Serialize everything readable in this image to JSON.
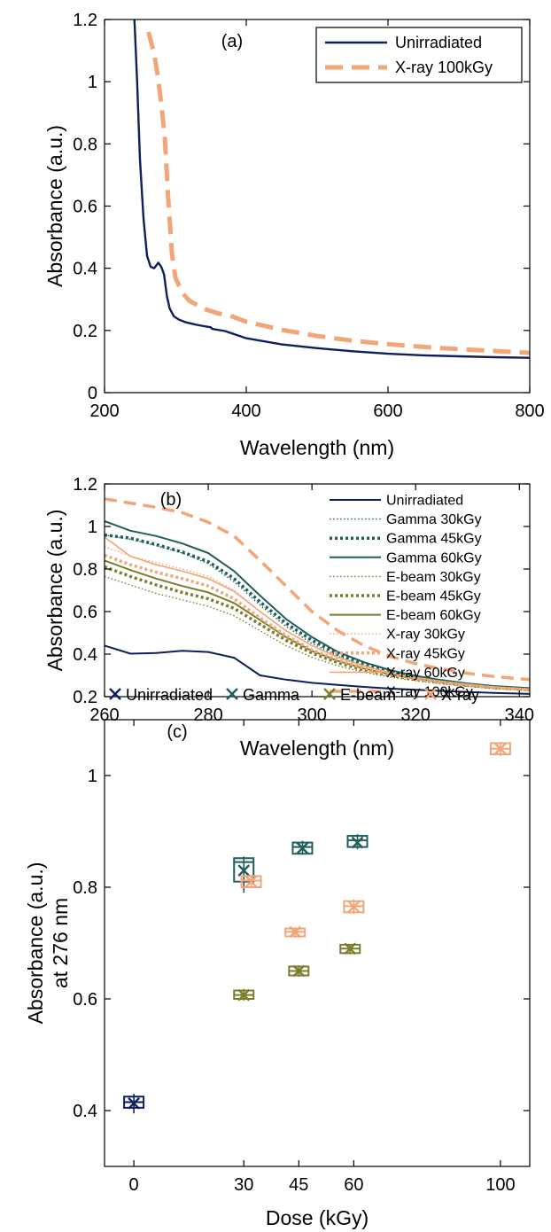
{
  "colors": {
    "unirradiated": "#0e1f5c",
    "gamma": "#1f5f5b",
    "ebeam": "#7a7d2b",
    "xray": "#f2a577"
  },
  "chart_data": [
    {
      "type": "line",
      "panel_label": "(a)",
      "xlabel": "Wavelength (nm)",
      "ylabel": "Absorbance (a.u.)",
      "xlim": [
        200,
        800
      ],
      "ylim": [
        0,
        1.2
      ],
      "xticks": [
        "200",
        "400",
        "600",
        "800"
      ],
      "yticks": [
        "0",
        "0.2",
        "0.4",
        "0.6",
        "0.8",
        "1",
        "1.2"
      ],
      "legend_position": "top-right",
      "series": [
        {
          "name": "Unirradiated",
          "color": "#0e1f5c",
          "style": "solid",
          "x": [
            242,
            246,
            250,
            255,
            260,
            265,
            270,
            276,
            280,
            284,
            288,
            292,
            298,
            305,
            315,
            330,
            350,
            352,
            370,
            400,
            450,
            500,
            550,
            600,
            650,
            700,
            750,
            800
          ],
          "y": [
            1.21,
            1.0,
            0.75,
            0.56,
            0.44,
            0.405,
            0.4,
            0.418,
            0.405,
            0.38,
            0.31,
            0.27,
            0.245,
            0.235,
            0.226,
            0.218,
            0.21,
            0.205,
            0.198,
            0.175,
            0.155,
            0.143,
            0.133,
            0.125,
            0.12,
            0.117,
            0.114,
            0.112
          ]
        },
        {
          "name": "X-ray 100kGy",
          "color": "#f2a577",
          "style": "dashed",
          "x": [
            262,
            266,
            270,
            275,
            280,
            285,
            290,
            295,
            300,
            310,
            320,
            340,
            360,
            380,
            400,
            450,
            500,
            550,
            600,
            650,
            700,
            750,
            800
          ],
          "y": [
            1.16,
            1.125,
            1.09,
            1.02,
            0.93,
            0.82,
            0.62,
            0.45,
            0.37,
            0.32,
            0.295,
            0.27,
            0.255,
            0.245,
            0.228,
            0.202,
            0.182,
            0.167,
            0.156,
            0.147,
            0.14,
            0.134,
            0.128
          ]
        }
      ]
    },
    {
      "type": "line",
      "panel_label": "(b)",
      "xlabel": "Wavelength (nm)",
      "ylabel": "Absorbance (a.u.)",
      "xlim": [
        260,
        342
      ],
      "ylim": [
        0.2,
        1.2
      ],
      "xticks": [
        "260",
        "280",
        "300",
        "320",
        "340"
      ],
      "yticks": [
        "0.2",
        "0.4",
        "0.6",
        "0.8",
        "1",
        "1.2"
      ],
      "legend_position": "top-right",
      "x": [
        260,
        265,
        270,
        275,
        280,
        285,
        290,
        295,
        300,
        305,
        310,
        315,
        320,
        325,
        330,
        335,
        342
      ],
      "series": [
        {
          "name": "Unirradiated",
          "color": "#0e1f5c",
          "style": "solid",
          "width": 2,
          "y": [
            0.44,
            0.402,
            0.405,
            0.416,
            0.41,
            0.383,
            0.3,
            0.28,
            0.265,
            0.255,
            0.246,
            0.238,
            0.232,
            0.227,
            0.222,
            0.218,
            0.213
          ]
        },
        {
          "name": "Gamma 30kGy",
          "color": "#1f5f5b",
          "style": "dotted-thin",
          "width": 1.4,
          "y": [
            0.96,
            0.94,
            0.91,
            0.875,
            0.825,
            0.74,
            0.63,
            0.53,
            0.45,
            0.39,
            0.345,
            0.31,
            0.285,
            0.265,
            0.25,
            0.238,
            0.23
          ]
        },
        {
          "name": "Gamma 45kGy",
          "color": "#1f5f5b",
          "style": "dotted-thick",
          "width": 3.5,
          "y": [
            0.96,
            0.945,
            0.915,
            0.88,
            0.835,
            0.755,
            0.645,
            0.545,
            0.465,
            0.4,
            0.355,
            0.32,
            0.293,
            0.272,
            0.256,
            0.244,
            0.234
          ]
        },
        {
          "name": "Gamma 60kGy",
          "color": "#1f5f5b",
          "style": "solid",
          "width": 2,
          "y": [
            1.025,
            0.98,
            0.955,
            0.92,
            0.875,
            0.79,
            0.675,
            0.565,
            0.48,
            0.41,
            0.362,
            0.325,
            0.298,
            0.278,
            0.262,
            0.25,
            0.24
          ]
        },
        {
          "name": "E-beam 30kGy",
          "color": "#7a7d2b",
          "style": "dotted-thin",
          "width": 1.4,
          "y": [
            0.765,
            0.725,
            0.685,
            0.655,
            0.625,
            0.58,
            0.51,
            0.44,
            0.385,
            0.345,
            0.315,
            0.292,
            0.275,
            0.26,
            0.248,
            0.238,
            0.228
          ]
        },
        {
          "name": "E-beam 45kGy",
          "color": "#7a7d2b",
          "style": "dotted-thick",
          "width": 3.5,
          "y": [
            0.81,
            0.765,
            0.725,
            0.69,
            0.66,
            0.615,
            0.54,
            0.465,
            0.405,
            0.36,
            0.325,
            0.3,
            0.281,
            0.266,
            0.253,
            0.243,
            0.233
          ]
        },
        {
          "name": "E-beam 60kGy",
          "color": "#7a7d2b",
          "style": "solid",
          "width": 2,
          "y": [
            0.84,
            0.795,
            0.755,
            0.72,
            0.69,
            0.64,
            0.56,
            0.48,
            0.415,
            0.368,
            0.332,
            0.305,
            0.285,
            0.27,
            0.257,
            0.246,
            0.236
          ]
        },
        {
          "name": "X-ray 30kGy",
          "color": "#f2a577",
          "style": "dotted-thin",
          "width": 1.4,
          "y": [
            0.905,
            0.86,
            0.83,
            0.8,
            0.765,
            0.7,
            0.6,
            0.51,
            0.44,
            0.385,
            0.342,
            0.31,
            0.287,
            0.268,
            0.253,
            0.241,
            0.23
          ]
        },
        {
          "name": "X-ray 45kGy",
          "color": "#f2a577",
          "style": "dotted-thick",
          "width": 3.5,
          "y": [
            0.865,
            0.82,
            0.785,
            0.755,
            0.72,
            0.66,
            0.57,
            0.487,
            0.42,
            0.372,
            0.335,
            0.306,
            0.285,
            0.268,
            0.254,
            0.242,
            0.232
          ]
        },
        {
          "name": "X-ray 60kGy",
          "color": "#f2a577",
          "style": "solid",
          "width": 1.6,
          "y": [
            0.95,
            0.86,
            0.82,
            0.79,
            0.755,
            0.695,
            0.6,
            0.51,
            0.44,
            0.385,
            0.345,
            0.313,
            0.29,
            0.272,
            0.258,
            0.246,
            0.235
          ]
        },
        {
          "name": "X-ray 100kGy",
          "color": "#f2a577",
          "style": "dashed",
          "width": 3.5,
          "y": [
            1.13,
            1.11,
            1.09,
            1.065,
            1.02,
            0.955,
            0.84,
            0.72,
            0.6,
            0.51,
            0.44,
            0.39,
            0.355,
            0.33,
            0.31,
            0.295,
            0.28
          ]
        }
      ]
    },
    {
      "type": "box",
      "panel_label": "(c)",
      "xlabel": "Dose (kGy)",
      "ylabel": [
        "Absorbance (a.u.)",
        "at 276 nm"
      ],
      "xlim": [
        -8,
        108
      ],
      "ylim": [
        0.3,
        1.1
      ],
      "xticks": [
        "0",
        "30",
        "45",
        "60",
        "100"
      ],
      "yticks": [
        "0.4",
        "0.6",
        "0.8",
        "1"
      ],
      "legend_position": "top",
      "groups": [
        {
          "name": "Unirradiated",
          "color": "#0e1f5c",
          "boxes": [
            {
              "dose": 0,
              "q1": 0.405,
              "q3": 0.425,
              "median": 0.415,
              "lo": 0.395,
              "hi": 0.43,
              "mean": 0.413
            }
          ]
        },
        {
          "name": "Gamma",
          "color": "#1f5f5b",
          "boxes": [
            {
              "dose": 30,
              "q1": 0.81,
              "q3": 0.852,
              "median": 0.845,
              "lo": 0.79,
              "hi": 0.855,
              "mean": 0.83
            },
            {
              "dose": 46,
              "q1": 0.86,
              "q3": 0.88,
              "median": 0.872,
              "lo": 0.858,
              "hi": 0.883,
              "mean": 0.87
            },
            {
              "dose": 61,
              "q1": 0.872,
              "q3": 0.892,
              "median": 0.884,
              "lo": 0.868,
              "hi": 0.895,
              "mean": 0.88
            }
          ]
        },
        {
          "name": "E-beam",
          "color": "#7a7d2b",
          "boxes": [
            {
              "dose": 30,
              "q1": 0.6,
              "q3": 0.615,
              "median": 0.607,
              "lo": 0.597,
              "hi": 0.618,
              "mean": 0.607
            },
            {
              "dose": 45,
              "q1": 0.642,
              "q3": 0.658,
              "median": 0.65,
              "lo": 0.64,
              "hi": 0.66,
              "mean": 0.65
            },
            {
              "dose": 59,
              "q1": 0.682,
              "q3": 0.697,
              "median": 0.69,
              "lo": 0.68,
              "hi": 0.698,
              "mean": 0.69
            }
          ]
        },
        {
          "name": "X-ray",
          "color": "#f2a577",
          "boxes": [
            {
              "dose": 32,
              "q1": 0.8,
              "q3": 0.82,
              "median": 0.812,
              "lo": 0.798,
              "hi": 0.822,
              "mean": 0.81
            },
            {
              "dose": 44,
              "q1": 0.712,
              "q3": 0.726,
              "median": 0.72,
              "lo": 0.71,
              "hi": 0.728,
              "mean": 0.72
            },
            {
              "dose": 60,
              "q1": 0.755,
              "q3": 0.775,
              "median": 0.766,
              "lo": 0.752,
              "hi": 0.778,
              "mean": 0.765
            },
            {
              "dose": 100,
              "q1": 1.038,
              "q3": 1.058,
              "median": 1.048,
              "lo": 1.035,
              "hi": 1.06,
              "mean": 1.048
            }
          ]
        }
      ]
    }
  ]
}
